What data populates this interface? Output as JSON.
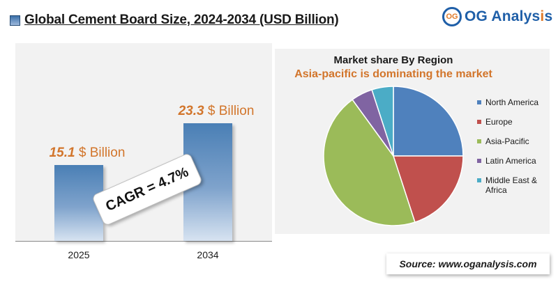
{
  "header": {
    "title": "Global Cement Board Size, 2024-2034 (USD Billion)",
    "logo_mark": "OG",
    "logo_text_before": "OG Analys",
    "logo_text_accent": "i",
    "logo_text_after": "s"
  },
  "colors": {
    "accent_orange": "#d2752b",
    "brand_blue": "#1f5fa8"
  },
  "bar_section": {
    "cagr_text": "CAGR = 4.7%"
  },
  "pie_section": {
    "title": "Market share By Region",
    "subtitle": "Asia-pacific is dominating the market"
  },
  "footer": {
    "source": "Source: www.oganalysis.com"
  },
  "chart_data": [
    {
      "type": "bar",
      "categories": [
        "2025",
        "2034"
      ],
      "values": [
        15.1,
        23.3
      ],
      "value_labels": [
        {
          "value": "15.1",
          "unit": " $ Billion"
        },
        {
          "value": "23.3",
          "unit": " $ Billion"
        }
      ],
      "xlabel": "",
      "ylabel": "",
      "ylim": [
        0,
        25
      ],
      "grid": false
    },
    {
      "type": "pie",
      "title": "Market share By Region",
      "labels": [
        "North America",
        "Europe",
        "Asia-Pacific",
        "Latin America",
        "Middle East & Africa"
      ],
      "values": [
        25,
        20,
        45,
        5,
        5
      ],
      "colors": [
        "#4f81bd",
        "#c0504d",
        "#9bbb59",
        "#8064a2",
        "#4bacc6"
      ],
      "legend": "right"
    }
  ]
}
